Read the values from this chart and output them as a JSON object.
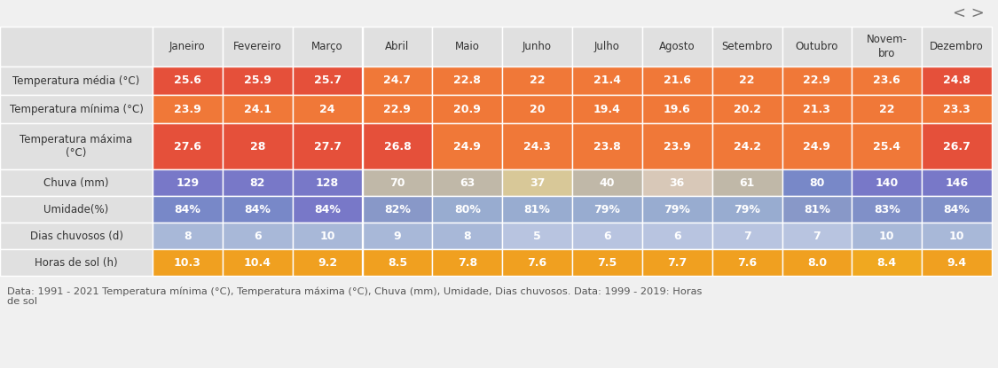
{
  "months": [
    "Janeiro",
    "Fevereiro",
    "Março",
    "Abril",
    "Maio",
    "Junho",
    "Julho",
    "Agosto",
    "Setembro",
    "Outubro",
    "Novem-\nbro",
    "Dezembro"
  ],
  "row_labels": [
    "Temperatura média (°C)",
    "Temperatura mínima (°C)",
    "Temperatura máxima\n(°C)",
    "Chuva (mm)",
    "Umidade(%)",
    "Dias chuvosos (d)",
    "Horas de sol (h)"
  ],
  "data": [
    [
      "25.6",
      "25.9",
      "25.7",
      "24.7",
      "22.8",
      "22",
      "21.4",
      "21.6",
      "22",
      "22.9",
      "23.6",
      "24.8"
    ],
    [
      "23.9",
      "24.1",
      "24",
      "22.9",
      "20.9",
      "20",
      "19.4",
      "19.6",
      "20.2",
      "21.3",
      "22",
      "23.3"
    ],
    [
      "27.6",
      "28",
      "27.7",
      "26.8",
      "24.9",
      "24.3",
      "23.8",
      "23.9",
      "24.2",
      "24.9",
      "25.4",
      "26.7"
    ],
    [
      "129",
      "82",
      "128",
      "70",
      "63",
      "37",
      "40",
      "36",
      "61",
      "80",
      "140",
      "146"
    ],
    [
      "84%",
      "84%",
      "84%",
      "82%",
      "80%",
      "81%",
      "79%",
      "79%",
      "79%",
      "81%",
      "83%",
      "84%"
    ],
    [
      "8",
      "6",
      "10",
      "9",
      "8",
      "5",
      "6",
      "6",
      "7",
      "7",
      "10",
      "10"
    ],
    [
      "10.3",
      "10.4",
      "9.2",
      "8.5",
      "7.8",
      "7.6",
      "7.5",
      "7.7",
      "7.6",
      "8.0",
      "8.4",
      "9.4"
    ]
  ],
  "cell_colors": [
    [
      "#e5503a",
      "#e5503a",
      "#e5503a",
      "#f07838",
      "#f07838",
      "#f07838",
      "#f07838",
      "#f07838",
      "#f07838",
      "#f07838",
      "#f07838",
      "#e5503a"
    ],
    [
      "#f07838",
      "#f07838",
      "#f07838",
      "#f07838",
      "#f07838",
      "#f07838",
      "#f07838",
      "#f07838",
      "#f07838",
      "#f07838",
      "#f07838",
      "#f07838"
    ],
    [
      "#e5503a",
      "#e5503a",
      "#e5503a",
      "#e5503a",
      "#f07838",
      "#f07838",
      "#f07838",
      "#f07838",
      "#f07838",
      "#f07838",
      "#f07838",
      "#e5503a"
    ],
    [
      "#7878c8",
      "#7878c8",
      "#7878c8",
      "#c0b8a8",
      "#c0b8a8",
      "#d8c898",
      "#c0b8a8",
      "#d8c8b8",
      "#c0b8a8",
      "#7888c8",
      "#7878c8",
      "#7878c8"
    ],
    [
      "#7888c8",
      "#7888c8",
      "#7878c8",
      "#8898c8",
      "#98acd0",
      "#98acd0",
      "#98acd0",
      "#98acd0",
      "#98acd0",
      "#8898c8",
      "#8090c8",
      "#8090c8"
    ],
    [
      "#a8b8d8",
      "#a8b8d8",
      "#a8b8d8",
      "#a8b8d8",
      "#a8b8d8",
      "#b8c4e0",
      "#b8c4e0",
      "#b8c4e0",
      "#b8c4e0",
      "#b8c4e0",
      "#a8b8d8",
      "#a8b8d8"
    ],
    [
      "#f0a020",
      "#f0a020",
      "#f0a020",
      "#f0a020",
      "#f0a020",
      "#f0a020",
      "#f0a020",
      "#f0a020",
      "#f0a020",
      "#f0a020",
      "#f0a820",
      "#f0a020"
    ]
  ],
  "footer_text": "Data: 1991 - 2021 Temperatura mínima (°C), Temperatura máxima (°C), Chuva (mm), Umidade, Dias chuvosos. Data: 1999 - 2019: Horas\nde sol",
  "bg_color": "#f0f0f0",
  "header_bg": "#e0e0e0",
  "row_label_bg": "#e0e0e0",
  "text_color": "#333333",
  "header_text_color": "#333333",
  "nav_arrows": "< >"
}
